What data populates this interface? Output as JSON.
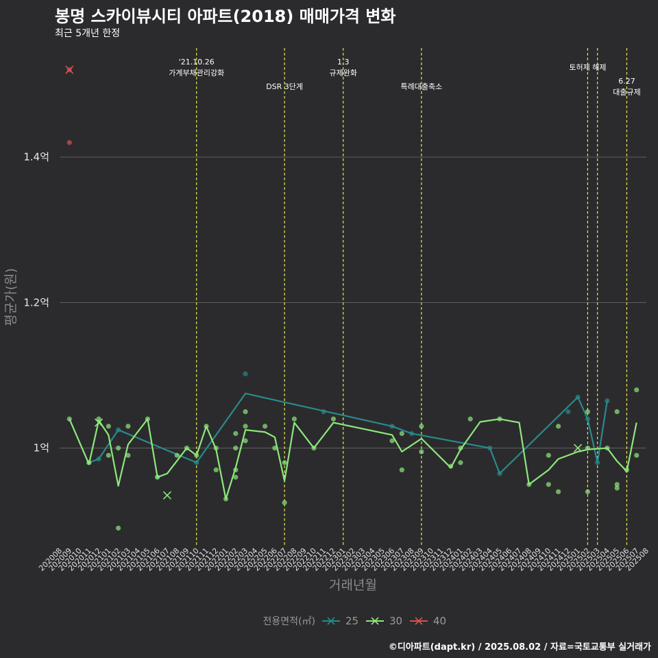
{
  "title": "봉명 스카이뷰시티 아파트(2018) 매매가격 변화",
  "subtitle": "최근 5개년 한정",
  "caption": "©디아파트(dapt.kr) / 2025.08.02 / 자료=국토교통부 실거래가",
  "colors": {
    "background": "#2b2b2d",
    "grid": "#5a5a5a",
    "event_line": "#e3e34a",
    "s25": "#2a8a8c",
    "s30": "#8ee87c",
    "s40": "#d9534f"
  },
  "chart_data": {
    "type": "line",
    "xlabel": "거래년월",
    "ylabel": "평균가(원)",
    "y_unit": "억",
    "ylim": [
      0.865,
      1.55
    ],
    "y_ticks": [
      {
        "value": 1.0,
        "label": "1억"
      },
      {
        "value": 1.2,
        "label": "1.2억"
      },
      {
        "value": 1.4,
        "label": "1.4억"
      }
    ],
    "grid": true,
    "months": [
      "202008",
      "202009",
      "202010",
      "202011",
      "202012",
      "202101",
      "202102",
      "202103",
      "202104",
      "202105",
      "202106",
      "202107",
      "202108",
      "202109",
      "202110",
      "202111",
      "202112",
      "202201",
      "202202",
      "202203",
      "202204",
      "202205",
      "202206",
      "202207",
      "202208",
      "202209",
      "202210",
      "202211",
      "202212",
      "202301",
      "202302",
      "202303",
      "202304",
      "202305",
      "202306",
      "202307",
      "202308",
      "202309",
      "202310",
      "202311",
      "202312",
      "202401",
      "202402",
      "202403",
      "202404",
      "202405",
      "202406",
      "202407",
      "202408",
      "202409",
      "202410",
      "202411",
      "202412",
      "202501",
      "202502",
      "202503",
      "202504",
      "202505",
      "202506",
      "202507",
      "202508"
    ],
    "events": [
      {
        "month_index": 14.0,
        "lines": [
          "'21.10.26",
          "가계부채관리강화"
        ],
        "row": 0
      },
      {
        "month_index": 23.0,
        "lines": [
          "DSR 3단계"
        ],
        "row": 1
      },
      {
        "month_index": 29.0,
        "lines": [
          "1.3",
          "규제완화"
        ],
        "row": 0
      },
      {
        "month_index": 37.0,
        "lines": [
          "특례대출축소"
        ],
        "row": 1
      },
      {
        "month_index": 54.0,
        "lines": [
          "토허제 해제"
        ],
        "row": 0
      },
      {
        "month_index": 55.0,
        "lines": [],
        "row": 0
      },
      {
        "month_index": 58.0,
        "lines": [
          "6.27",
          "대출규제"
        ],
        "row": 1
      }
    ],
    "series": [
      {
        "name": "25",
        "color": "#2a8a8c",
        "line": [
          [
            3,
            0.98
          ],
          [
            4,
            0.985
          ],
          [
            6,
            1.025
          ],
          [
            14,
            0.98
          ],
          [
            19,
            1.075
          ],
          [
            34,
            1.03
          ],
          [
            35,
            1.025
          ],
          [
            36,
            1.02
          ],
          [
            44,
            1.0
          ],
          [
            45,
            0.965
          ],
          [
            53,
            1.07
          ],
          [
            54,
            1.04
          ],
          [
            55,
            0.98
          ],
          [
            56,
            1.065
          ]
        ],
        "points": [
          [
            3,
            0.98
          ],
          [
            4,
            0.985
          ],
          [
            6,
            1.025
          ],
          [
            10,
            0.96
          ],
          [
            14,
            0.98
          ],
          [
            19,
            1.102
          ],
          [
            27,
            1.05
          ],
          [
            34,
            1.03
          ],
          [
            36,
            1.02
          ],
          [
            44,
            1.0
          ],
          [
            45,
            0.965
          ],
          [
            52,
            1.05
          ],
          [
            53,
            1.07
          ],
          [
            54,
            1.04
          ],
          [
            55,
            0.98
          ],
          [
            56,
            1.065
          ]
        ],
        "markers": []
      },
      {
        "name": "30",
        "color": "#8ee87c",
        "line": [
          [
            1,
            1.04
          ],
          [
            3,
            0.978
          ],
          [
            4,
            1.038
          ],
          [
            5,
            1.018
          ],
          [
            6,
            0.948
          ],
          [
            7,
            1.005
          ],
          [
            9,
            1.04
          ],
          [
            10,
            0.96
          ],
          [
            11,
            0.965
          ],
          [
            13,
            1.0
          ],
          [
            14,
            0.99
          ],
          [
            15,
            1.03
          ],
          [
            16,
            0.998
          ],
          [
            17,
            0.93
          ],
          [
            18,
            0.973
          ],
          [
            19,
            1.025
          ],
          [
            21,
            1.022
          ],
          [
            22,
            1.015
          ],
          [
            23,
            0.955
          ],
          [
            24,
            1.035
          ],
          [
            26,
            1.0
          ],
          [
            28,
            1.035
          ],
          [
            34,
            1.018
          ],
          [
            35,
            0.995
          ],
          [
            37,
            1.013
          ],
          [
            40,
            0.973
          ],
          [
            41,
            0.998
          ],
          [
            43,
            1.036
          ],
          [
            45,
            1.04
          ],
          [
            47,
            1.035
          ],
          [
            48,
            0.95
          ],
          [
            50,
            0.97
          ],
          [
            51,
            0.985
          ],
          [
            53,
            0.995
          ],
          [
            54,
            0.998
          ],
          [
            56,
            1.0
          ],
          [
            57,
            0.982
          ],
          [
            58,
            0.968
          ],
          [
            59,
            1.035
          ]
        ],
        "points": [
          [
            1,
            1.04
          ],
          [
            3,
            0.98
          ],
          [
            4,
            1.04
          ],
          [
            5,
            1.03
          ],
          [
            5,
            0.99
          ],
          [
            6,
            1.0
          ],
          [
            6,
            0.89
          ],
          [
            7,
            1.03
          ],
          [
            7,
            0.99
          ],
          [
            9,
            1.04
          ],
          [
            10,
            0.96
          ],
          [
            12,
            0.99
          ],
          [
            13,
            1.0
          ],
          [
            14,
            0.99
          ],
          [
            15,
            1.03
          ],
          [
            16,
            1.0
          ],
          [
            16,
            0.97
          ],
          [
            17,
            0.93
          ],
          [
            18,
            1.02
          ],
          [
            18,
            0.96
          ],
          [
            18,
            1.0
          ],
          [
            18,
            0.97
          ],
          [
            19,
            1.05
          ],
          [
            19,
            1.03
          ],
          [
            19,
            1.01
          ],
          [
            21,
            1.03
          ],
          [
            22,
            1.0
          ],
          [
            23,
            0.98
          ],
          [
            23,
            0.925
          ],
          [
            24,
            1.04
          ],
          [
            26,
            1.0
          ],
          [
            28,
            1.04
          ],
          [
            34,
            1.01
          ],
          [
            35,
            1.02
          ],
          [
            35,
            0.97
          ],
          [
            37,
            1.03
          ],
          [
            37,
            0.995
          ],
          [
            40,
            0.975
          ],
          [
            41,
            1.0
          ],
          [
            41,
            0.98
          ],
          [
            42,
            1.04
          ],
          [
            45,
            1.04
          ],
          [
            48,
            0.95
          ],
          [
            50,
            0.99
          ],
          [
            50,
            0.95
          ],
          [
            51,
            1.03
          ],
          [
            51,
            0.94
          ],
          [
            54,
            1.05
          ],
          [
            54,
            1.0
          ],
          [
            54,
            0.94
          ],
          [
            56,
            1.0
          ],
          [
            57,
            1.05
          ],
          [
            57,
            0.95
          ],
          [
            57,
            0.945
          ],
          [
            58,
            0.97
          ],
          [
            59,
            1.08
          ],
          [
            59,
            0.99
          ]
        ],
        "markers": [
          [
            4,
            1.035
          ],
          [
            11,
            0.935
          ],
          [
            53,
            1.0
          ]
        ]
      },
      {
        "name": "40",
        "color": "#d9534f",
        "line": [],
        "points": [
          [
            1,
            1.52
          ],
          [
            1,
            1.42
          ]
        ],
        "markers": [
          [
            1,
            1.52
          ]
        ]
      }
    ],
    "legend": {
      "title": "전용면적(㎡)",
      "position": "bottom",
      "entries": [
        "25",
        "30",
        "40"
      ]
    }
  }
}
